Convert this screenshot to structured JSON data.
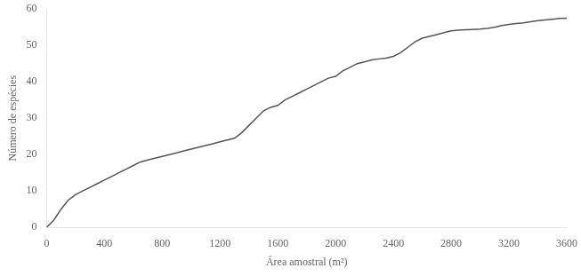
{
  "chart_data": {
    "type": "line",
    "x": [
      0,
      50,
      100,
      150,
      200,
      250,
      300,
      350,
      400,
      450,
      500,
      550,
      600,
      650,
      700,
      750,
      800,
      850,
      900,
      950,
      1000,
      1050,
      1100,
      1150,
      1200,
      1250,
      1300,
      1350,
      1400,
      1450,
      1500,
      1550,
      1600,
      1650,
      1700,
      1750,
      1800,
      1850,
      1900,
      1950,
      2000,
      2050,
      2100,
      2150,
      2200,
      2250,
      2300,
      2350,
      2400,
      2450,
      2500,
      2550,
      2600,
      2650,
      2700,
      2750,
      2800,
      2850,
      2900,
      2950,
      3000,
      3050,
      3100,
      3150,
      3200,
      3250,
      3300,
      3350,
      3400,
      3450,
      3500,
      3550,
      3600
    ],
    "values": [
      0,
      2,
      5,
      7.5,
      9,
      10,
      11,
      12,
      13,
      14,
      15,
      16,
      17,
      18,
      18.5,
      19,
      19.5,
      20,
      20.5,
      21,
      21.5,
      22,
      22.5,
      23,
      23.5,
      24,
      24.5,
      26,
      28,
      30,
      32,
      33,
      33.5,
      35,
      36,
      37,
      38,
      39,
      40,
      41,
      41.5,
      43,
      44,
      45,
      45.5,
      46,
      46.3,
      46.5,
      47,
      48,
      49.5,
      51,
      52,
      52.5,
      53,
      53.5,
      54,
      54.2,
      54.3,
      54.4,
      54.5,
      54.7,
      55,
      55.5,
      55.8,
      56,
      56.2,
      56.5,
      56.8,
      57,
      57.2,
      57.4,
      57.5
    ],
    "color": "#555555",
    "xlabel": "Área amostral (m²)",
    "ylabel": "Número de espécies",
    "xlim": [
      0,
      3600
    ],
    "ylim": [
      0,
      60
    ],
    "xticks": [
      0,
      400,
      800,
      1200,
      1600,
      2000,
      2400,
      2800,
      3200,
      3600
    ],
    "yticks": [
      0,
      10,
      20,
      30,
      40,
      50,
      60
    ],
    "grid": false
  }
}
